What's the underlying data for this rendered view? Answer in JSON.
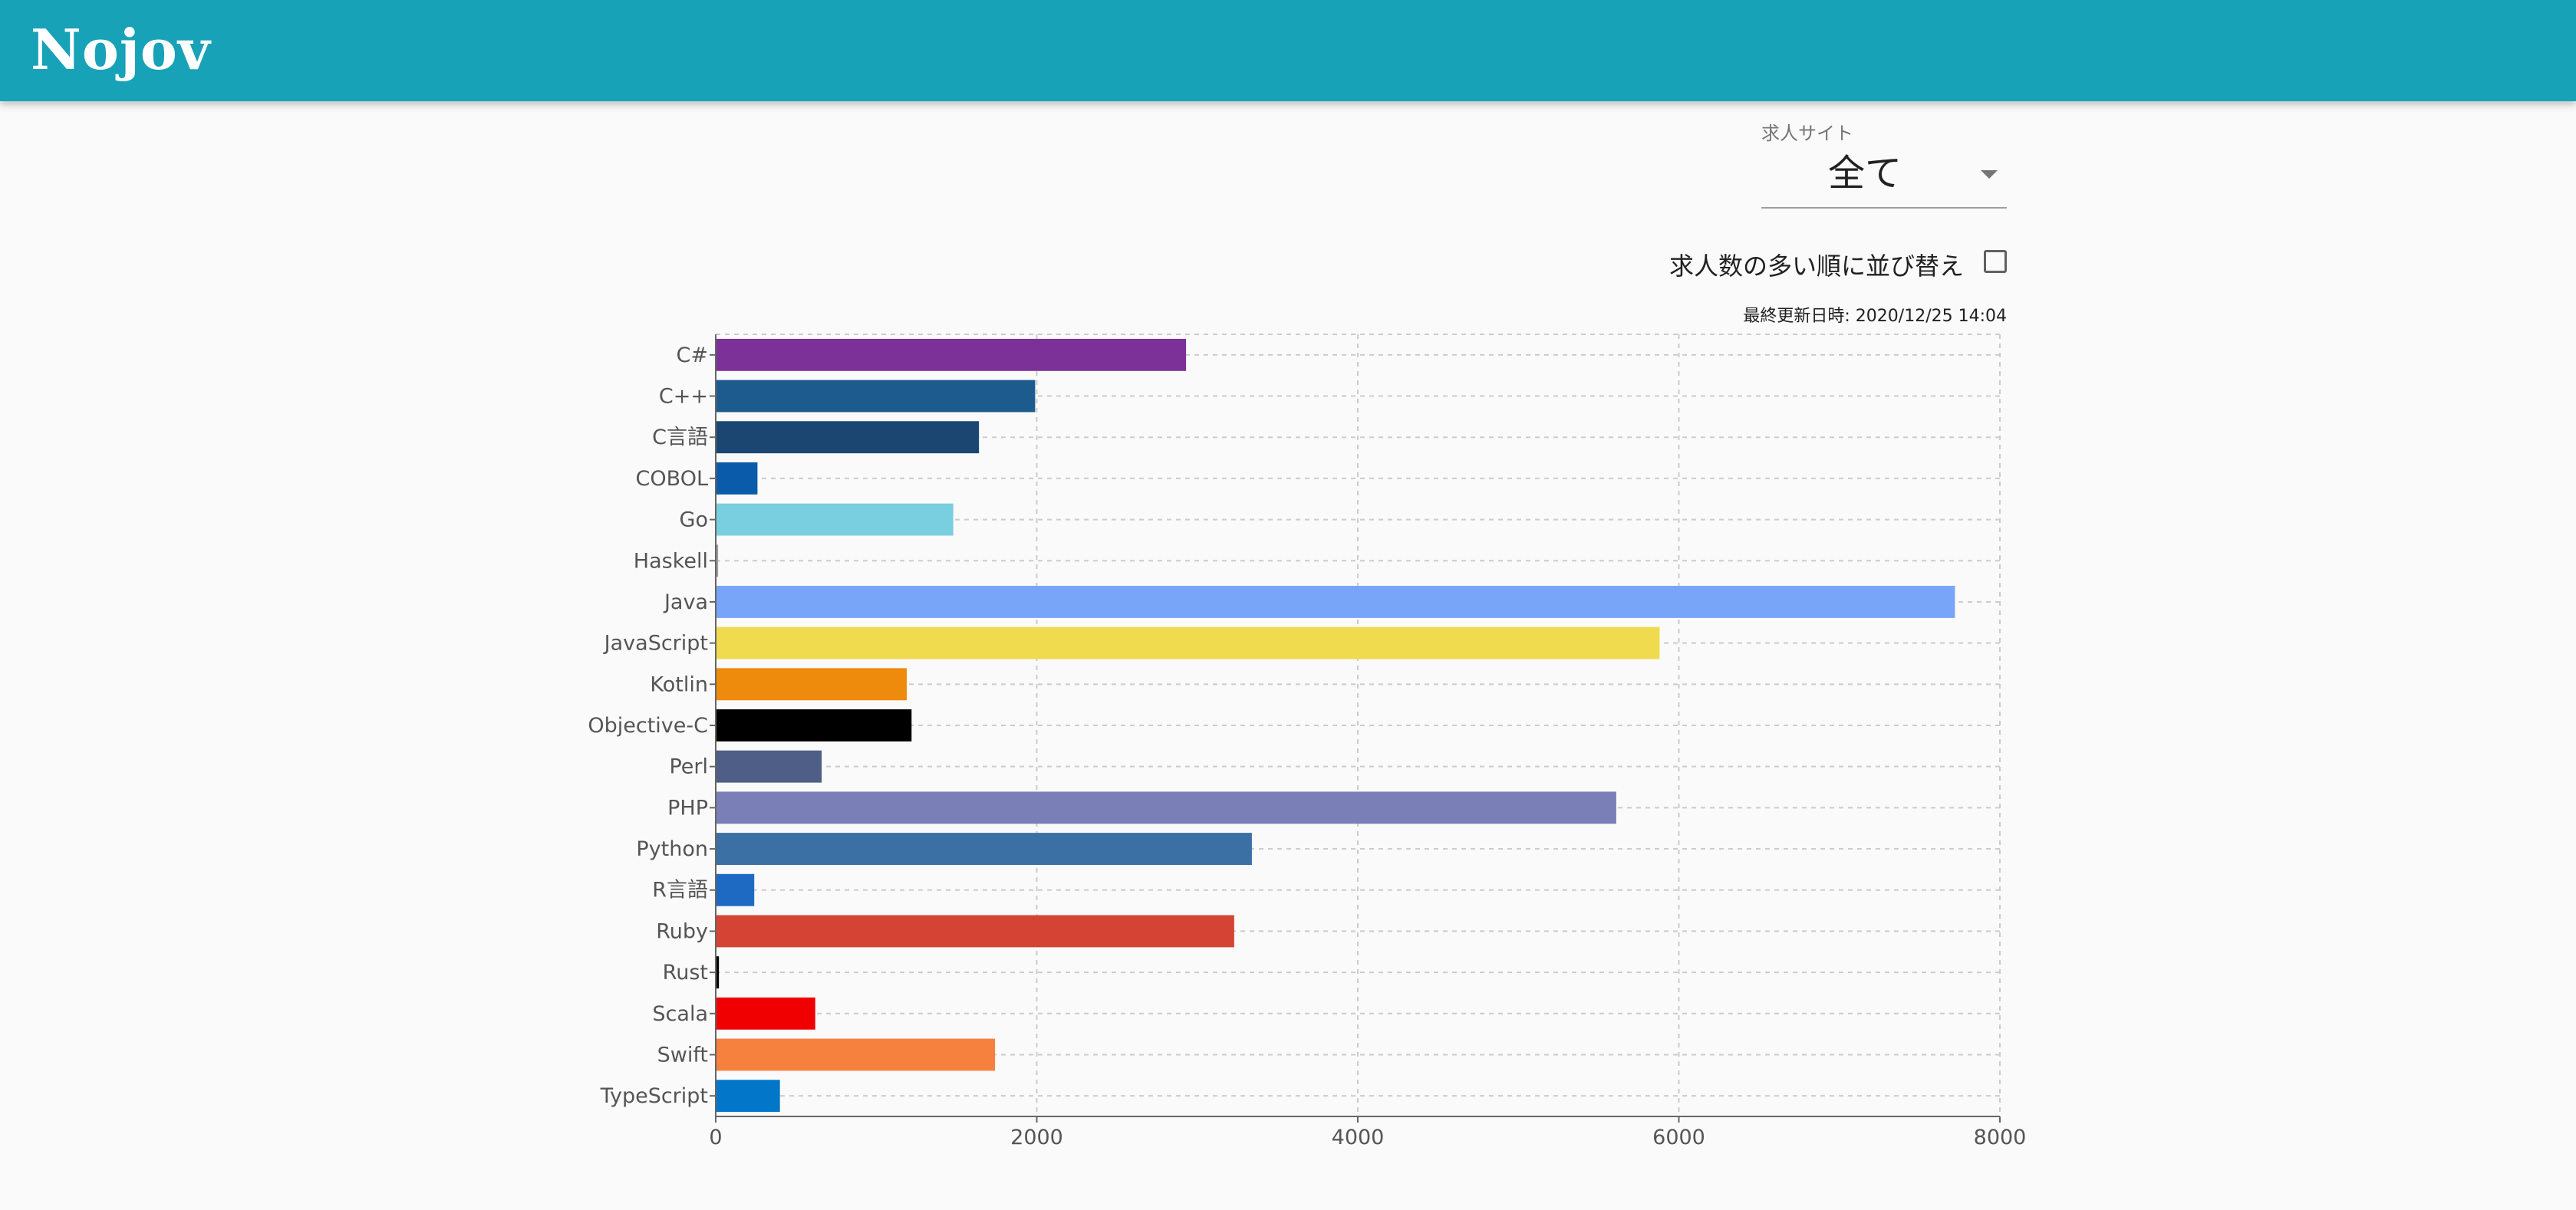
{
  "header": {
    "logo_text": "Nojov",
    "background_color": "#17a2b8"
  },
  "filter": {
    "label": "求人サイト",
    "selected_value": "全て"
  },
  "sort": {
    "label": "求人数の多い順に並び替え",
    "checked": false
  },
  "last_updated": "最終更新日時: 2020/12/25 14:04",
  "chart_data": {
    "type": "bar",
    "orientation": "horizontal",
    "categories": [
      "C#",
      "C++",
      "C言語",
      "COBOL",
      "Go",
      "Haskell",
      "Java",
      "JavaScript",
      "Kotlin",
      "Objective-C",
      "Perl",
      "PHP",
      "Python",
      "R言語",
      "Ruby",
      "Rust",
      "Scala",
      "Swift",
      "TypeScript"
    ],
    "values": [
      2930,
      1990,
      1640,
      260,
      1480,
      15,
      7720,
      5880,
      1190,
      1220,
      660,
      5610,
      3340,
      240,
      3230,
      20,
      620,
      1740,
      400
    ],
    "colors": [
      "#7b3197",
      "#1d5a8e",
      "#1a4671",
      "#0b5bab",
      "#79cfdf",
      "#9e9e9e",
      "#78a5f7",
      "#f0db4f",
      "#ee8a0c",
      "#000000",
      "#4e5e86",
      "#7a7fb8",
      "#3b70a4",
      "#1e6ac2",
      "#d54334",
      "#000000",
      "#f10000",
      "#f6813f",
      "#0277ca"
    ],
    "xlim": [
      0,
      8000
    ],
    "xticks": [
      0,
      2000,
      4000,
      6000,
      8000
    ],
    "grid": true
  }
}
